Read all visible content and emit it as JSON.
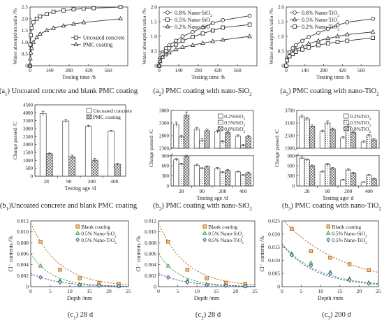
{
  "chart_data": [
    {
      "id": "a1",
      "type": "line",
      "caption_main": "(a",
      "caption_sub": "1",
      "caption_text": ") Uncoated concrete and blank PMC coating",
      "xlabel": "Testing time /h",
      "ylabel": "Water absorption ratio /%",
      "xlim": [
        0,
        700
      ],
      "ylim": [
        0,
        2.5
      ],
      "xticks": [
        0,
        140,
        280,
        420,
        560
      ],
      "yticks": [
        0,
        0.5,
        1.0,
        1.5,
        2.0,
        2.5
      ],
      "ytick_labels": [
        "0",
        "0.5",
        "1.0",
        "1.5",
        "2.0",
        "2.5"
      ],
      "legend_position": "center-right",
      "series": [
        {
          "name": "Uncoated concrete",
          "marker": "square",
          "x": [
            0,
            2,
            6,
            12,
            24,
            48,
            72,
            120,
            168,
            240,
            312,
            384,
            456,
            648
          ],
          "y": [
            0,
            0.9,
            1.3,
            1.6,
            1.85,
            2.0,
            2.1,
            2.2,
            2.3,
            2.35,
            2.4,
            2.43,
            2.45,
            2.5
          ]
        },
        {
          "name": "PMC coating",
          "marker": "triangle",
          "x": [
            0,
            2,
            6,
            12,
            24,
            48,
            72,
            120,
            168,
            240,
            312,
            384,
            648
          ],
          "y": [
            0,
            0.3,
            0.55,
            0.75,
            1.0,
            1.2,
            1.35,
            1.5,
            1.6,
            1.7,
            1.78,
            1.84,
            2.0
          ]
        }
      ]
    },
    {
      "id": "a2",
      "type": "line",
      "caption_main": "(a",
      "caption_sub": "2",
      "caption_text": ") PMC coating with nano-SiO",
      "caption_tail_sub": "2",
      "xlabel": "Testing time /h",
      "ylabel": "Water absorption ratio /%",
      "xlim": [
        0,
        700
      ],
      "ylim": [
        0,
        2.0
      ],
      "xticks": [
        0,
        140,
        280,
        420,
        560
      ],
      "yticks": [
        0,
        0.5,
        1.0,
        1.5,
        2.0
      ],
      "ytick_labels": [
        "0",
        "0.5",
        "1.0",
        "1.5",
        "2.0"
      ],
      "legend_position": "top-left",
      "series": [
        {
          "name": "0.8% Nano-SiO",
          "name_sub": "2",
          "marker": "circle",
          "x": [
            0,
            6,
            24,
            48,
            72,
            120,
            168,
            240,
            312,
            384,
            456,
            648
          ],
          "y": [
            0,
            0.25,
            0.45,
            0.6,
            0.7,
            0.85,
            1.0,
            1.15,
            1.3,
            1.45,
            1.55,
            1.7
          ]
        },
        {
          "name": "0.5% Nano-SiO",
          "name_sub": "2",
          "marker": "square",
          "x": [
            0,
            6,
            24,
            48,
            72,
            120,
            168,
            240,
            312,
            384,
            456,
            648
          ],
          "y": [
            0,
            0.2,
            0.38,
            0.5,
            0.6,
            0.72,
            0.85,
            0.98,
            1.1,
            1.2,
            1.3,
            1.4
          ]
        },
        {
          "name": "0.2% Nano-SiO",
          "name_sub": "2",
          "marker": "triangle",
          "x": [
            0,
            6,
            24,
            48,
            72,
            120,
            168,
            240,
            312,
            384,
            456,
            648
          ],
          "y": [
            0,
            0.15,
            0.3,
            0.38,
            0.45,
            0.55,
            0.63,
            0.7,
            0.77,
            0.83,
            0.88,
            1.0
          ]
        }
      ]
    },
    {
      "id": "a3",
      "type": "line",
      "caption_main": "(a",
      "caption_sub": "3",
      "caption_text": ") PMC coating with nano-TiO",
      "caption_tail_sub": "2",
      "xlabel": "Testing time /h",
      "ylabel": "Water absorption ratio /%",
      "xlim": [
        0,
        700
      ],
      "ylim": [
        0,
        2.0
      ],
      "xticks": [
        0,
        140,
        280,
        420,
        560
      ],
      "yticks": [
        0,
        0.5,
        1.0,
        1.5,
        2.0
      ],
      "ytick_labels": [
        "0",
        "0.5",
        "1.0",
        "1.5",
        "2.0"
      ],
      "legend_position": "top-left",
      "series": [
        {
          "name": "0.8% Nano-TiO",
          "name_sub": "2",
          "marker": "circle",
          "x": [
            0,
            6,
            24,
            48,
            72,
            120,
            168,
            240,
            312,
            384,
            456,
            648
          ],
          "y": [
            0,
            0.25,
            0.45,
            0.6,
            0.7,
            0.85,
            0.98,
            1.12,
            1.25,
            1.38,
            1.48,
            1.6
          ]
        },
        {
          "name": "0.5% Nano-TiO",
          "name_sub": "2",
          "marker": "triangle",
          "x": [
            0,
            6,
            24,
            48,
            72,
            120,
            168,
            240,
            312,
            384,
            456,
            648
          ],
          "y": [
            0,
            0.2,
            0.35,
            0.45,
            0.55,
            0.65,
            0.75,
            0.85,
            0.93,
            1.0,
            1.06,
            1.15
          ]
        },
        {
          "name": "0.2% Nano-TiO",
          "name_sub": "2",
          "marker": "square",
          "x": [
            0,
            6,
            24,
            48,
            72,
            120,
            168,
            240,
            312,
            384,
            456,
            648
          ],
          "y": [
            0,
            0.18,
            0.32,
            0.4,
            0.47,
            0.55,
            0.62,
            0.7,
            0.76,
            0.81,
            0.85,
            0.95
          ]
        }
      ]
    },
    {
      "id": "b1",
      "type": "bar",
      "caption_main": "(b",
      "caption_sub": "1",
      "caption_text": ")Uncoated concrete and blank PMC coating",
      "xlabel": "Testing age /d",
      "ylabel": "Charge passed /C",
      "categories": [
        "28",
        "90",
        "200",
        "400"
      ],
      "ylim": [
        0,
        4500
      ],
      "yticks": [
        0,
        500,
        1000,
        1500,
        2000,
        2500,
        3000,
        3500,
        4000,
        4500
      ],
      "legend_position": "top-right",
      "series": [
        {
          "name": "Uncoated concrete",
          "pattern": "plain",
          "values": [
            3950,
            3480,
            3150,
            2850
          ],
          "err": [
            150,
            100,
            60,
            40
          ]
        },
        {
          "name": "PMC coating",
          "pattern": "crosshatch",
          "values": [
            1420,
            1230,
            1010,
            750
          ],
          "err": [
            40,
            100,
            110,
            60
          ]
        }
      ]
    },
    {
      "id": "b2",
      "type": "bar",
      "caption_main": "(b",
      "caption_sub": "2",
      "caption_text": ") PMC coating with nano-SiO",
      "caption_tail_sub": "2",
      "xlabel": "Testing age /d",
      "ylabel": "Charge passed /C",
      "categories": [
        "28",
        "90",
        "200",
        "400"
      ],
      "broken_axis": true,
      "ylim_top": [
        2300,
        3800
      ],
      "ylim_bottom": [
        0,
        900
      ],
      "yticks_top": [
        2300,
        2800,
        3300,
        3800
      ],
      "yticks_bottom": [
        0,
        300,
        600,
        900
      ],
      "legend_position": "top-right",
      "series": [
        {
          "name": "0.2%SiO",
          "name_sub": "2",
          "pattern": "plain",
          "values": [
            780,
            620,
            520,
            420
          ],
          "err": [
            40,
            30,
            30,
            20
          ],
          "upper_values": [
            3250,
            3060,
            2960,
            2780
          ],
          "upper_err": [
            80,
            70,
            60,
            50
          ]
        },
        {
          "name": "0.5%SiO",
          "name_sub": "2",
          "pattern": "dots",
          "values": [
            650,
            520,
            400,
            320
          ],
          "err": [
            30,
            25,
            25,
            20
          ],
          "upper_values": [
            2750,
            2610,
            2560,
            2400
          ],
          "upper_err": [
            60,
            60,
            50,
            50
          ]
        },
        {
          "name": "0.8%SiO",
          "name_sub": "2",
          "pattern": "crosshatch",
          "values": [
            880,
            570,
            460,
            390
          ],
          "err": [
            40,
            30,
            30,
            25
          ],
          "upper_values": [
            3620,
            3000,
            2920,
            2760
          ],
          "upper_err": [
            120,
            60,
            60,
            50
          ]
        }
      ]
    },
    {
      "id": "b3",
      "type": "bar",
      "caption_main": "(b",
      "caption_sub": "3",
      "caption_text": ") PMC coating with nano-TiO",
      "caption_tail_sub": "2",
      "xlabel": "Testing age/ d",
      "ylabel": "Charge passed /C",
      "categories": [
        "28",
        "90",
        "200",
        "400"
      ],
      "broken_axis": true,
      "ylim_top": [
        1900,
        3700
      ],
      "ylim_bottom": [
        0,
        900
      ],
      "yticks_top": [
        1900,
        2500,
        3100,
        3700
      ],
      "yticks_bottom": [
        0,
        300,
        600,
        900
      ],
      "legend_position": "top-right",
      "series": [
        {
          "name": "0.2%TiO",
          "name_sub": "2",
          "pattern": "plain",
          "values": [
            830,
            420,
            180,
            110
          ],
          "err": [
            30,
            25,
            20,
            15
          ],
          "upper_values": [
            3400,
            2700,
            2400,
            2200
          ],
          "upper_err": [
            80,
            60,
            50,
            50
          ]
        },
        {
          "name": "0.5%TiO",
          "name_sub": "2",
          "pattern": "dots",
          "values": [
            780,
            640,
            480,
            320
          ],
          "err": [
            30,
            40,
            30,
            20
          ],
          "upper_values": [
            3300,
            3100,
            2950,
            2500
          ],
          "upper_err": [
            70,
            100,
            60,
            50
          ]
        },
        {
          "name": "0.8%TiO",
          "name_sub": "2",
          "pattern": "crosshatch",
          "values": [
            600,
            520,
            380,
            210
          ],
          "err": [
            25,
            30,
            25,
            20
          ],
          "upper_values": [
            2950,
            2800,
            2650,
            2300
          ],
          "upper_err": [
            60,
            60,
            50,
            50
          ]
        }
      ]
    },
    {
      "id": "c1",
      "type": "scatter",
      "caption_main": "(c",
      "caption_sub": "1",
      "caption_text": ") 28 d",
      "xlabel": "Depth /mm",
      "ylabel": "Cl⁻ contents /%",
      "xlim": [
        0,
        25
      ],
      "ylim": [
        0,
        0.012
      ],
      "xticks": [
        0,
        5,
        10,
        15,
        20,
        25
      ],
      "yticks": [
        0,
        0.002,
        0.004,
        0.006,
        0.008,
        0.01,
        0.012
      ],
      "ytick_labels": [
        "0",
        "0.002",
        "0.004",
        "0.006",
        "0.008",
        "0.010",
        "0.012"
      ],
      "legend_position": "top-right",
      "series": [
        {
          "name": "Blank coating",
          "marker": "square",
          "color": "#b5651d",
          "x": [
            2.5,
            7.5,
            12.5,
            17.5,
            22.5
          ],
          "y": [
            0.0082,
            0.0031,
            0.0015,
            0.0007,
            0.0005
          ]
        },
        {
          "name": "0.5% Nano-SiO",
          "name_sub": "2",
          "marker": "triangle",
          "color": "#3a9a3a",
          "x": [
            2.5,
            7.5,
            12.5,
            17.5,
            22.5
          ],
          "y": [
            0.0038,
            0.0011,
            0.0004,
            0.0002,
            0.0001
          ]
        },
        {
          "name": "0.5% Nano-TiO",
          "name_sub": "2",
          "marker": "diamond",
          "color": "#3a4fa0",
          "x": [
            2.5,
            7.5,
            12.5,
            17.5,
            22.5
          ],
          "y": [
            0.0017,
            0.0008,
            0.0003,
            0.0002,
            0.0001
          ]
        }
      ]
    },
    {
      "id": "c2",
      "type": "scatter",
      "caption_main": "(c",
      "caption_sub": "2",
      "caption_text": ") 28 d",
      "xlabel": "Depth /mm",
      "ylabel": "Cl⁻ contents /%",
      "xlim": [
        0,
        25
      ],
      "ylim": [
        0,
        0.012
      ],
      "xticks": [
        0,
        5,
        10,
        15,
        20,
        25
      ],
      "yticks": [
        0,
        0.002,
        0.004,
        0.006,
        0.008,
        0.01,
        0.012
      ],
      "ytick_labels": [
        "0",
        "0.002",
        "0.004",
        "0.006",
        "0.008",
        "0.010",
        "0.012"
      ],
      "legend_position": "top-right",
      "series": [
        {
          "name": "Blank coating",
          "marker": "square",
          "color": "#b5651d",
          "x": [
            2.5,
            7.5,
            12.5,
            17.5,
            22.5
          ],
          "y": [
            0.0082,
            0.0031,
            0.0015,
            0.0007,
            0.0005
          ]
        },
        {
          "name": "0.5% Nano-SiO",
          "name_sub": "2",
          "marker": "triangle",
          "color": "#3a9a3a",
          "x": [
            2.5,
            7.5,
            12.5,
            17.5,
            22.5
          ],
          "y": [
            0.0038,
            0.0011,
            0.0004,
            0.0002,
            0.0001
          ]
        },
        {
          "name": "0.5% Nano-TiO",
          "name_sub": "2",
          "marker": "diamond",
          "color": "#3a4fa0",
          "x": [
            2.5,
            7.5,
            12.5,
            17.5,
            22.5
          ],
          "y": [
            0.0017,
            0.0008,
            0.0003,
            0.0002,
            0.0001
          ]
        }
      ]
    },
    {
      "id": "c3",
      "type": "scatter",
      "caption_main": "(c",
      "caption_sub": "3",
      "caption_text": ") 200 d",
      "xlabel": "Depth /mm",
      "ylabel": "Cl⁻ contents /%",
      "xlim": [
        0,
        25
      ],
      "ylim": [
        0,
        0.025
      ],
      "xticks": [
        0,
        5,
        10,
        15,
        20,
        25
      ],
      "yticks": [
        0,
        0.005,
        0.01,
        0.015,
        0.02,
        0.025
      ],
      "ytick_labels": [
        "0",
        "0.005",
        "0.010",
        "0.015",
        "0.020",
        "0.025"
      ],
      "legend_position": "top-right",
      "series": [
        {
          "name": "Blank coating",
          "marker": "square",
          "color": "#b5651d",
          "x": [
            2.5,
            7.5,
            12.5,
            17.5,
            22.5
          ],
          "y": [
            0.022,
            0.0135,
            0.011,
            0.0085,
            0.0063
          ]
        },
        {
          "name": "0.5% Nano-SiO",
          "name_sub": "2",
          "marker": "triangle",
          "color": "#3a9a3a",
          "x": [
            2.5,
            7.5,
            12.5,
            17.5,
            22.5
          ],
          "y": [
            0.0125,
            0.009,
            0.0055,
            0.003,
            0.0015
          ]
        },
        {
          "name": "0.5% Nano-TiO",
          "name_sub": "2",
          "marker": "diamond",
          "color": "#3a4fa0",
          "x": [
            2.5,
            7.5,
            12.5,
            17.5,
            22.5
          ],
          "y": [
            0.012,
            0.008,
            0.005,
            0.0025,
            0.0012
          ]
        }
      ]
    }
  ]
}
